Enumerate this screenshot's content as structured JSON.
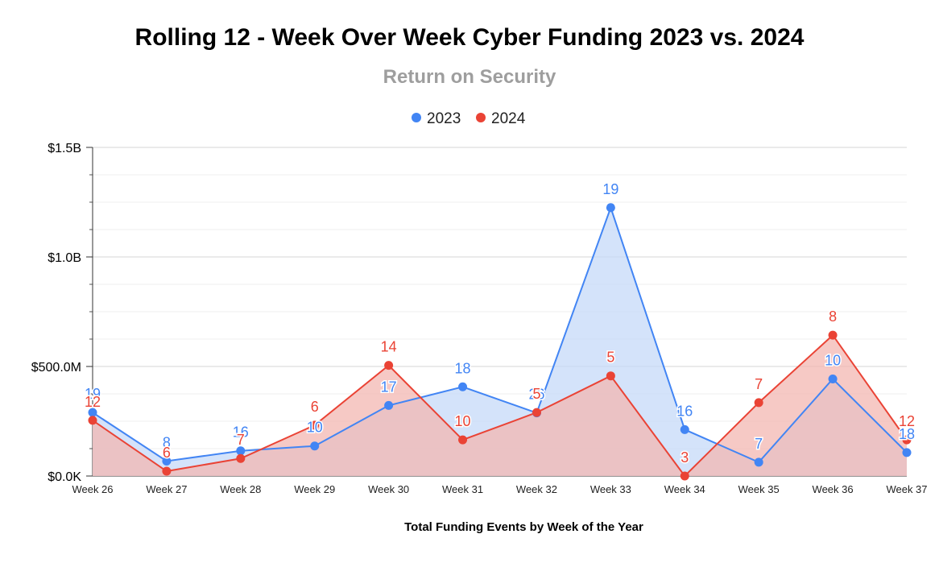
{
  "chart_data": {
    "type": "area",
    "title": "Rolling 12 - Week Over Week Cyber Funding 2023 vs. 2024",
    "subtitle": "Return on Security",
    "xlabel": "Total Funding Events by Week of the Year",
    "ylabel": "",
    "categories": [
      "Week 26",
      "Week 27",
      "Week 28",
      "Week 29",
      "Week 30",
      "Week 31",
      "Week 32",
      "Week 33",
      "Week 34",
      "Week 35",
      "Week 36",
      "Week 37"
    ],
    "ylim": [
      0,
      1500000000
    ],
    "yticks": [
      0,
      500000000,
      1000000000,
      1500000000
    ],
    "ytick_labels": [
      "$0.0K",
      "$500.0M",
      "$1.0B",
      "$1.5B"
    ],
    "legend_position": "top",
    "series": [
      {
        "name": "2023",
        "color": "#4285f4",
        "fill": "#c6d9f8",
        "values": [
          290000000,
          68000000,
          115000000,
          137000000,
          322000000,
          407000000,
          288000000,
          1225000000,
          212000000,
          63000000,
          443000000,
          107000000
        ],
        "labels": [
          "19",
          "8",
          "16",
          "10",
          "17",
          "18",
          "26",
          "19",
          "16",
          "7",
          "10",
          "18"
        ]
      },
      {
        "name": "2024",
        "color": "#ea4335",
        "fill": "#f3b7b2",
        "values": [
          254000000,
          22000000,
          80000000,
          232000000,
          505000000,
          165000000,
          290000000,
          457000000,
          0,
          335000000,
          643000000,
          165000000
        ],
        "labels": [
          "12",
          "6",
          "7",
          "6",
          "14",
          "10",
          "5",
          "5",
          "3",
          "7",
          "8",
          "12"
        ]
      }
    ]
  }
}
